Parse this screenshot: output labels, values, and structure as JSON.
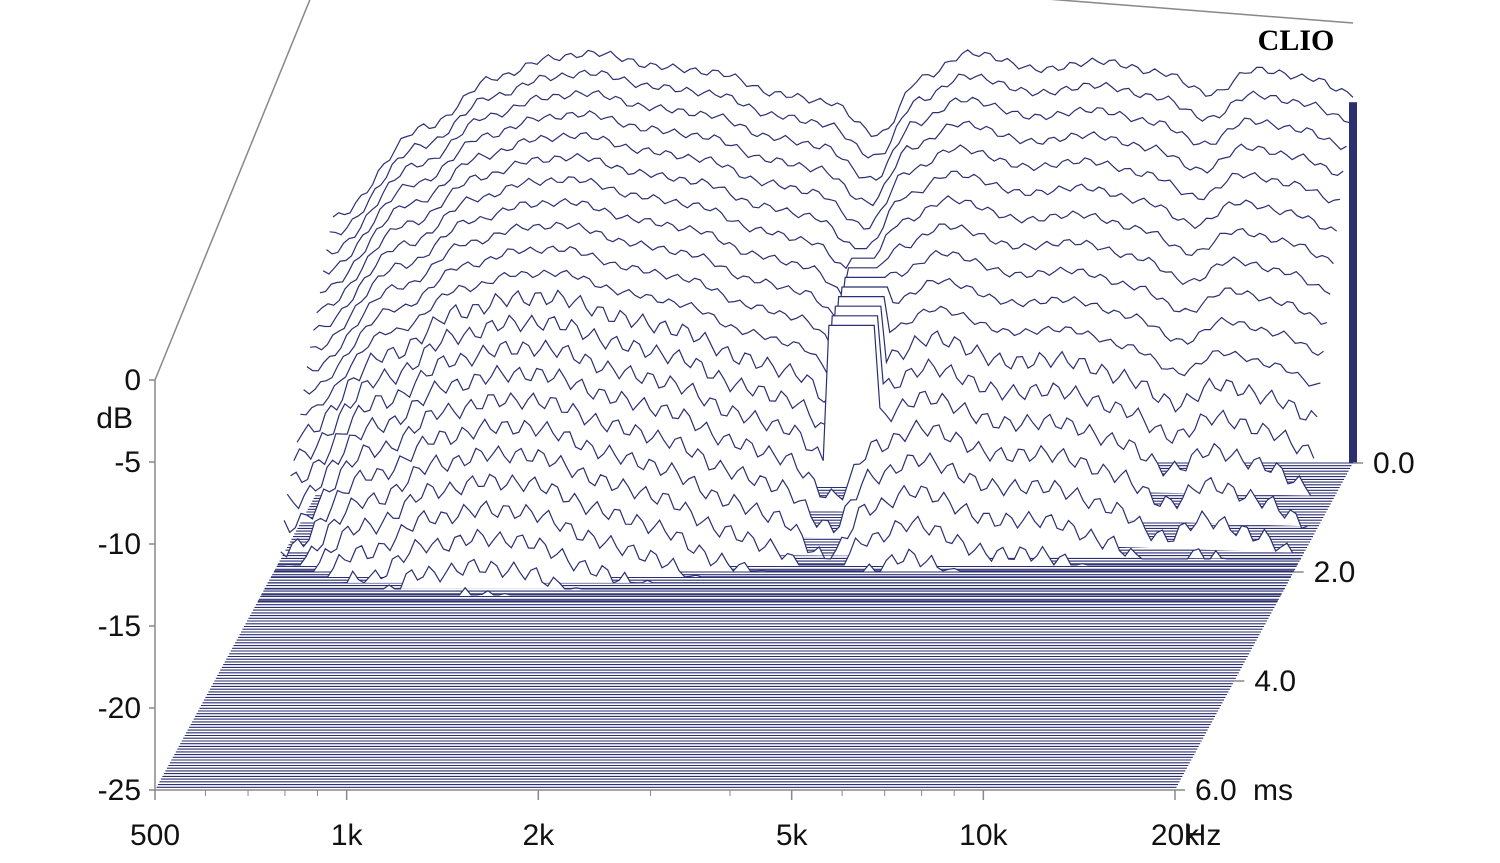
{
  "chart_data": {
    "type": "waterfall-3d",
    "brand_label": "CLIO",
    "y_axis": {
      "unit_label": "dB",
      "ticks": [
        "0",
        "-5",
        "-10",
        "-15",
        "-20",
        "-25"
      ],
      "range": [
        -25,
        0
      ]
    },
    "x_axis": {
      "unit_label": "Hz",
      "scale": "log",
      "range": [
        500,
        20000
      ],
      "ticks": [
        {
          "value": 500,
          "label": "500"
        },
        {
          "value": 1000,
          "label": "1k"
        },
        {
          "value": 2000,
          "label": "2k"
        },
        {
          "value": 5000,
          "label": "5k"
        },
        {
          "value": 10000,
          "label": "10k"
        },
        {
          "value": 20000,
          "label": "20k"
        }
      ]
    },
    "z_axis": {
      "unit_label": "ms",
      "range": [
        0.0,
        6.0
      ],
      "ticks": [
        "0.0",
        "2.0",
        "4.0",
        "6.0"
      ]
    },
    "colors": {
      "trace": "#2b2f72",
      "frame": "#888888",
      "text": "#111111"
    },
    "decay": {
      "initial_slices": 24,
      "initial_response": [
        {
          "hz": 500,
          "db": -10
        },
        {
          "hz": 700,
          "db": -4.5
        },
        {
          "hz": 900,
          "db": -1.5
        },
        {
          "hz": 1100,
          "db": -0.3
        },
        {
          "hz": 1300,
          "db": 0
        },
        {
          "hz": 1600,
          "db": -0.8
        },
        {
          "hz": 2000,
          "db": -1.2
        },
        {
          "hz": 2500,
          "db": -2.5
        },
        {
          "hz": 3000,
          "db": -3.0
        },
        {
          "hz": 3600,
          "db": -5.0
        },
        {
          "hz": 4200,
          "db": -1.5
        },
        {
          "hz": 5000,
          "db": 0
        },
        {
          "hz": 6500,
          "db": -1.0
        },
        {
          "hz": 8000,
          "db": -0.5
        },
        {
          "hz": 10000,
          "db": -1.2
        },
        {
          "hz": 12000,
          "db": -2.5
        },
        {
          "hz": 14000,
          "db": -1.0
        },
        {
          "hz": 17000,
          "db": -1.5
        },
        {
          "hz": 20000,
          "db": -2.5
        }
      ],
      "resonances": [
        {
          "hz": 900,
          "db": -8,
          "decay_ms": 1.0
        },
        {
          "hz": 1500,
          "db": -10,
          "decay_ms": 0.6
        },
        {
          "hz": 3800,
          "db": -9,
          "decay_ms": 1.5
        },
        {
          "hz": 5200,
          "db": -11,
          "decay_ms": 1.0
        }
      ]
    }
  }
}
